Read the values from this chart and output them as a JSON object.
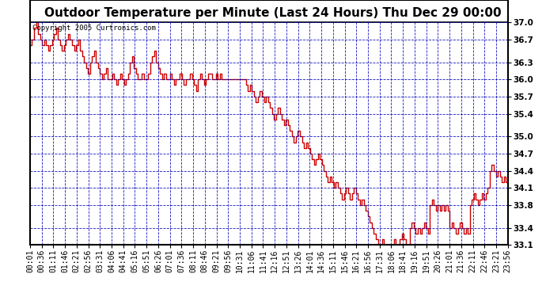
{
  "title": "Outdoor Temperature per Minute (Last 24 Hours) Thu Dec 29 00:00",
  "copyright": "Copyright 2005 Curtronics.com",
  "ylim": [
    33.1,
    37.0
  ],
  "yticks": [
    33.1,
    33.4,
    33.8,
    34.1,
    34.4,
    34.7,
    35.0,
    35.4,
    35.7,
    36.0,
    36.3,
    36.7,
    37.0
  ],
  "line_color": "#cc0000",
  "bg_color": "#ffffff",
  "grid_color_major": "#0000bb",
  "grid_color_minor": "#0000bb",
  "title_fontsize": 11,
  "copyright_fontsize": 6.5,
  "tick_label_fontsize": 7.5,
  "xtick_labels": [
    "00:01",
    "00:36",
    "01:11",
    "01:46",
    "02:21",
    "02:56",
    "03:31",
    "04:06",
    "04:41",
    "05:16",
    "05:51",
    "06:26",
    "07:01",
    "07:36",
    "08:11",
    "08:46",
    "09:21",
    "09:56",
    "10:31",
    "11:06",
    "11:41",
    "12:16",
    "12:51",
    "13:26",
    "14:01",
    "14:36",
    "15:11",
    "15:46",
    "16:21",
    "16:56",
    "17:31",
    "18:06",
    "18:41",
    "19:16",
    "19:51",
    "20:26",
    "21:01",
    "21:36",
    "22:11",
    "22:46",
    "23:21",
    "23:56"
  ],
  "temperature_data": [
    36.6,
    36.7,
    36.9,
    37.0,
    36.8,
    36.7,
    36.6,
    36.7,
    36.6,
    36.5,
    36.6,
    36.7,
    36.8,
    36.9,
    36.7,
    36.6,
    36.5,
    36.6,
    36.7,
    36.8,
    36.7,
    36.6,
    36.5,
    36.6,
    36.7,
    36.5,
    36.4,
    36.3,
    36.2,
    36.1,
    36.3,
    36.4,
    36.5,
    36.3,
    36.2,
    36.1,
    36.0,
    36.1,
    36.2,
    36.0,
    36.0,
    36.1,
    36.0,
    35.9,
    36.0,
    36.1,
    36.0,
    35.9,
    36.0,
    36.1,
    36.3,
    36.4,
    36.2,
    36.1,
    36.0,
    36.0,
    36.1,
    36.0,
    36.0,
    36.1,
    36.3,
    36.4,
    36.5,
    36.3,
    36.2,
    36.1,
    36.0,
    36.1,
    36.0,
    36.0,
    36.1,
    36.0,
    35.9,
    36.0,
    36.0,
    36.1,
    36.0,
    35.9,
    36.0,
    36.0,
    36.1,
    36.0,
    35.9,
    35.8,
    36.0,
    36.1,
    36.0,
    35.9,
    36.0,
    36.1,
    36.1,
    36.0,
    36.0,
    36.1,
    36.0,
    36.1,
    36.0,
    36.0,
    36.0,
    36.0,
    36.0,
    36.0,
    36.0,
    36.0,
    36.0,
    36.0,
    36.0,
    36.0,
    35.9,
    35.8,
    35.9,
    35.8,
    35.7,
    35.6,
    35.7,
    35.8,
    35.7,
    35.6,
    35.7,
    35.6,
    35.5,
    35.4,
    35.3,
    35.4,
    35.5,
    35.4,
    35.3,
    35.2,
    35.3,
    35.2,
    35.1,
    35.0,
    34.9,
    35.0,
    35.1,
    35.0,
    34.9,
    34.8,
    34.9,
    34.8,
    34.7,
    34.6,
    34.5,
    34.6,
    34.7,
    34.6,
    34.5,
    34.4,
    34.3,
    34.2,
    34.3,
    34.2,
    34.1,
    34.2,
    34.1,
    34.0,
    33.9,
    34.0,
    34.1,
    34.0,
    33.9,
    34.0,
    34.1,
    34.0,
    33.9,
    33.8,
    33.9,
    33.8,
    33.7,
    33.6,
    33.5,
    33.4,
    33.3,
    33.2,
    33.1,
    33.1,
    33.2,
    33.1,
    33.1,
    33.1,
    33.1,
    33.1,
    33.2,
    33.1,
    33.1,
    33.2,
    33.3,
    33.2,
    33.1,
    33.1,
    33.4,
    33.5,
    33.4,
    33.3,
    33.4,
    33.3,
    33.4,
    33.5,
    33.4,
    33.3,
    33.8,
    33.9,
    33.8,
    33.7,
    33.8,
    33.7,
    33.8,
    33.7,
    33.8,
    33.7,
    33.4,
    33.5,
    33.4,
    33.3,
    33.4,
    33.5,
    33.4,
    33.3,
    33.4,
    33.3,
    33.8,
    33.9,
    34.0,
    33.9,
    33.8,
    33.9,
    34.0,
    33.9,
    34.0,
    34.1,
    34.4,
    34.5,
    34.4,
    34.3,
    34.4,
    34.3,
    34.2,
    34.3,
    34.2,
    34.1
  ]
}
